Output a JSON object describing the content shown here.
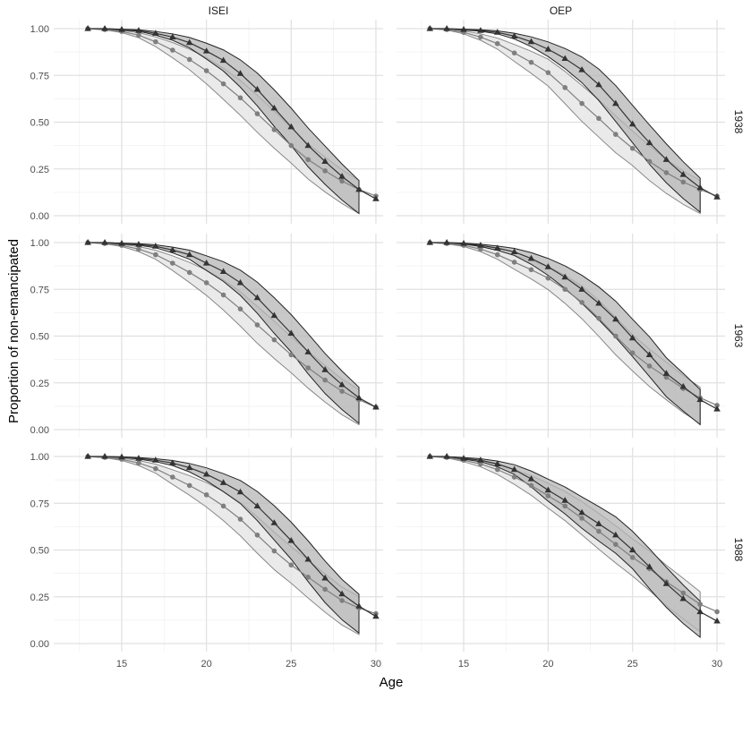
{
  "chart_data": {
    "type": "line",
    "xlabel": "Age",
    "ylabel": "Proportion of non-emancipated",
    "xlim": [
      12,
      31
    ],
    "ylim": [
      0,
      1
    ],
    "x_ticks": [
      15,
      20,
      25,
      30
    ],
    "y_ticks": [
      "0.00",
      "0.25",
      "0.50",
      "0.75",
      "1.00"
    ],
    "grid": true,
    "columns": [
      "ISEI",
      "OEP"
    ],
    "rows": [
      "1938",
      "1963",
      "1988"
    ],
    "x": [
      13,
      14,
      15,
      16,
      17,
      18,
      19,
      20,
      21,
      22,
      23,
      24,
      25,
      26,
      27,
      28,
      29,
      30
    ],
    "band_halfwidth_peak": 0.1,
    "colors": {
      "triangle": "#333333",
      "circle": "#7f7f7f",
      "band_dark": "#b5b5b5",
      "band_light": "#e3e3e3"
    },
    "panels": [
      {
        "col": "ISEI",
        "row": "1938",
        "triangle": [
          1,
          1,
          0.995,
          0.99,
          0.975,
          0.955,
          0.925,
          0.88,
          0.83,
          0.76,
          0.675,
          0.575,
          0.475,
          0.375,
          0.29,
          0.21,
          0.14,
          0.09
        ],
        "circle": [
          1,
          0.995,
          0.985,
          0.965,
          0.93,
          0.885,
          0.835,
          0.775,
          0.705,
          0.63,
          0.545,
          0.46,
          0.375,
          0.3,
          0.24,
          0.185,
          0.14,
          0.105
        ]
      },
      {
        "col": "OEP",
        "row": "1938",
        "triangle": [
          1,
          1,
          0.995,
          0.99,
          0.98,
          0.96,
          0.93,
          0.89,
          0.84,
          0.78,
          0.7,
          0.6,
          0.49,
          0.39,
          0.3,
          0.22,
          0.15,
          0.1
        ],
        "circle": [
          1,
          0.995,
          0.98,
          0.955,
          0.92,
          0.87,
          0.82,
          0.765,
          0.685,
          0.6,
          0.52,
          0.435,
          0.36,
          0.29,
          0.23,
          0.18,
          0.14,
          0.105
        ]
      },
      {
        "col": "ISEI",
        "row": "1963",
        "triangle": [
          1,
          1,
          0.995,
          0.99,
          0.98,
          0.96,
          0.935,
          0.89,
          0.845,
          0.785,
          0.705,
          0.61,
          0.515,
          0.415,
          0.32,
          0.24,
          0.17,
          0.12
        ],
        "circle": [
          1,
          0.995,
          0.985,
          0.965,
          0.935,
          0.89,
          0.84,
          0.785,
          0.72,
          0.645,
          0.56,
          0.48,
          0.4,
          0.33,
          0.265,
          0.205,
          0.16,
          0.12
        ]
      },
      {
        "col": "OEP",
        "row": "1963",
        "triangle": [
          1,
          1,
          0.995,
          0.985,
          0.97,
          0.95,
          0.915,
          0.87,
          0.815,
          0.75,
          0.675,
          0.59,
          0.49,
          0.4,
          0.3,
          0.23,
          0.16,
          0.11
        ],
        "circle": [
          1,
          0.995,
          0.985,
          0.965,
          0.935,
          0.895,
          0.855,
          0.81,
          0.75,
          0.68,
          0.595,
          0.5,
          0.41,
          0.34,
          0.28,
          0.22,
          0.17,
          0.13
        ]
      },
      {
        "col": "ISEI",
        "row": "1988",
        "triangle": [
          1,
          1,
          0.997,
          0.99,
          0.98,
          0.965,
          0.94,
          0.905,
          0.86,
          0.81,
          0.735,
          0.645,
          0.55,
          0.45,
          0.35,
          0.265,
          0.2,
          0.145
        ],
        "circle": [
          1,
          0.995,
          0.985,
          0.965,
          0.935,
          0.89,
          0.845,
          0.795,
          0.735,
          0.665,
          0.58,
          0.495,
          0.42,
          0.355,
          0.29,
          0.23,
          0.19,
          0.16
        ]
      },
      {
        "col": "OEP",
        "row": "1988",
        "triangle": [
          1,
          1,
          0.99,
          0.98,
          0.96,
          0.93,
          0.88,
          0.82,
          0.765,
          0.7,
          0.64,
          0.58,
          0.5,
          0.41,
          0.32,
          0.24,
          0.17,
          0.12
        ],
        "circle": [
          1,
          0.995,
          0.98,
          0.96,
          0.93,
          0.89,
          0.845,
          0.79,
          0.735,
          0.67,
          0.6,
          0.53,
          0.46,
          0.4,
          0.33,
          0.27,
          0.21,
          0.17
        ]
      }
    ]
  }
}
